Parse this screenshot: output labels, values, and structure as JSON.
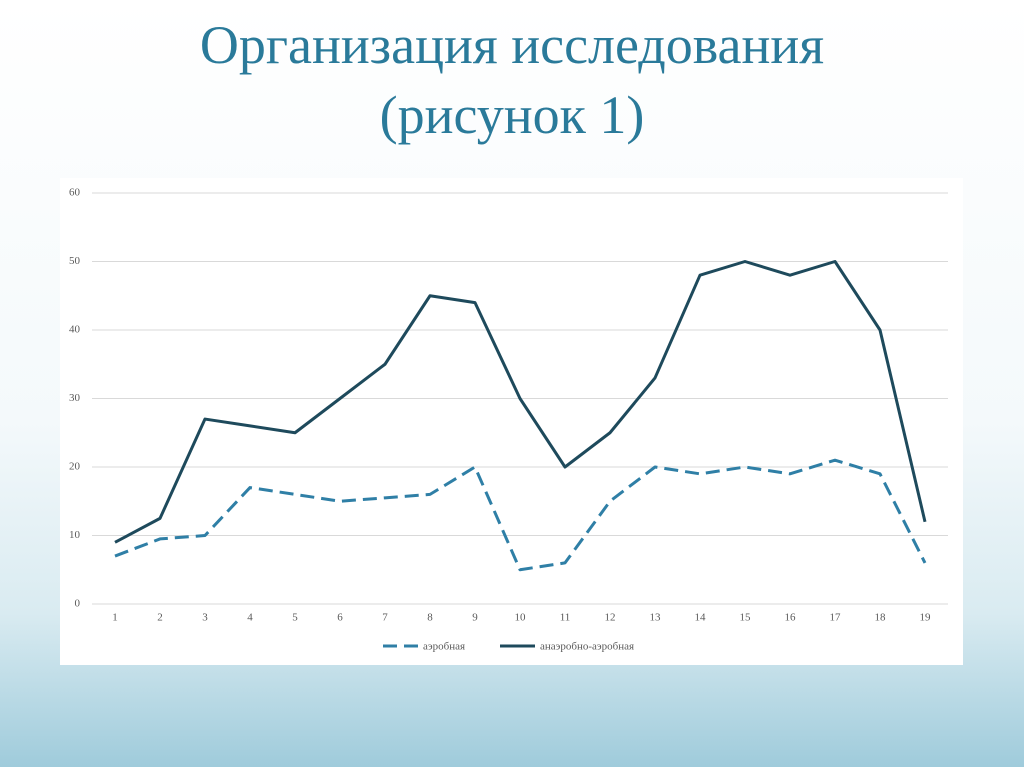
{
  "chart_data": {
    "type": "line",
    "title": "Организация исследования (рисунок 1)",
    "categories": [
      "1",
      "2",
      "3",
      "4",
      "5",
      "6",
      "7",
      "8",
      "9",
      "10",
      "11",
      "12",
      "13",
      "14",
      "15",
      "16",
      "17",
      "18",
      "19"
    ],
    "series": [
      {
        "name": "аэробная",
        "color": "#2f7fa6",
        "dashed": true,
        "values": [
          7,
          9.5,
          10,
          17,
          16,
          15,
          15.5,
          16,
          20,
          5,
          6,
          15,
          20,
          19,
          20,
          19,
          21,
          19,
          6
        ]
      },
      {
        "name": "анаэробно-аэробная",
        "color": "#1e4a5c",
        "dashed": false,
        "values": [
          9,
          12.5,
          27,
          26,
          25,
          30,
          35,
          45,
          44,
          30,
          20,
          25,
          33,
          48,
          50,
          48,
          50,
          40,
          12
        ]
      }
    ],
    "ylim": [
      0,
      60
    ],
    "yticks": [
      0,
      10,
      20,
      30,
      40,
      50,
      60
    ],
    "grid": true,
    "legend": "bottom"
  }
}
